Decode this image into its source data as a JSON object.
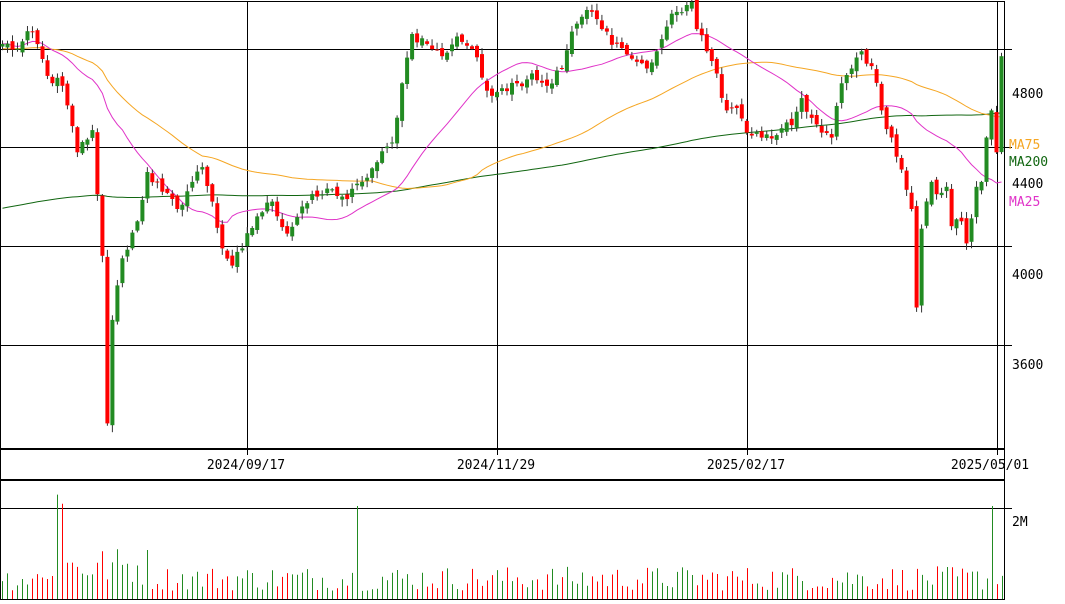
{
  "chart_data": {
    "type": "candlestick",
    "title": "",
    "price_axis": {
      "ylim": [
        3180,
        4990
      ],
      "ticks": [
        {
          "value": 3600,
          "label": "3600"
        },
        {
          "value": 4000,
          "label": "4000"
        },
        {
          "value": 4400,
          "label": "4400"
        },
        {
          "value": 4800,
          "label": "4800"
        }
      ],
      "grid": true
    },
    "date_axis": {
      "labels": [
        {
          "index": 49,
          "label": "2024/09/17"
        },
        {
          "index": 99,
          "label": "2024/11/29"
        },
        {
          "index": 149,
          "label": "2025/02/17"
        },
        {
          "index": 199,
          "label": "2025/05/01"
        }
      ],
      "grid": true
    },
    "volume_axis": {
      "ylim": [
        0,
        2600000
      ],
      "ticks": [
        {
          "value": 2000000,
          "label": "2M"
        }
      ]
    },
    "colors": {
      "up": "#228b22",
      "down": "#ff0000",
      "ma25": "#e033c8",
      "ma75": "#f5a623",
      "ma200": "#116611",
      "grid": "#000000"
    },
    "moving_averages": [
      {
        "name": "MA75",
        "color": "#f5a623",
        "last": 4565
      },
      {
        "name": "MA200",
        "color": "#116611",
        "last": 4490
      },
      {
        "name": "MA25",
        "color": "#e033c8",
        "last": 4320
      }
    ],
    "anchors": [
      [
        0,
        4820
      ],
      [
        3,
        4800
      ],
      [
        6,
        4870
      ],
      [
        9,
        4690
      ],
      [
        12,
        4650
      ],
      [
        15,
        4380
      ],
      [
        18,
        4470
      ],
      [
        19,
        4210
      ],
      [
        20,
        3960
      ],
      [
        21,
        3280
      ],
      [
        22,
        3700
      ],
      [
        24,
        3950
      ],
      [
        27,
        4100
      ],
      [
        29,
        4300
      ],
      [
        32,
        4220
      ],
      [
        35,
        4150
      ],
      [
        38,
        4260
      ],
      [
        40,
        4320
      ],
      [
        42,
        4180
      ],
      [
        44,
        3990
      ],
      [
        46,
        3920
      ],
      [
        48,
        3990
      ],
      [
        51,
        4120
      ],
      [
        54,
        4180
      ],
      [
        57,
        4050
      ],
      [
        60,
        4160
      ],
      [
        63,
        4200
      ],
      [
        66,
        4230
      ],
      [
        69,
        4190
      ],
      [
        72,
        4260
      ],
      [
        75,
        4340
      ],
      [
        78,
        4420
      ],
      [
        80,
        4660
      ],
      [
        82,
        4860
      ],
      [
        85,
        4820
      ],
      [
        88,
        4770
      ],
      [
        91,
        4850
      ],
      [
        94,
        4800
      ],
      [
        97,
        4630
      ],
      [
        100,
        4640
      ],
      [
        103,
        4660
      ],
      [
        106,
        4700
      ],
      [
        109,
        4650
      ],
      [
        112,
        4720
      ],
      [
        114,
        4870
      ],
      [
        116,
        4930
      ],
      [
        118,
        4950
      ],
      [
        120,
        4880
      ],
      [
        123,
        4820
      ],
      [
        126,
        4760
      ],
      [
        129,
        4720
      ],
      [
        131,
        4790
      ],
      [
        133,
        4890
      ],
      [
        135,
        4950
      ],
      [
        138,
        4990
      ],
      [
        139,
        4880
      ],
      [
        141,
        4790
      ],
      [
        143,
        4700
      ],
      [
        145,
        4550
      ],
      [
        147,
        4560
      ],
      [
        149,
        4460
      ],
      [
        152,
        4440
      ],
      [
        155,
        4450
      ],
      [
        158,
        4490
      ],
      [
        160,
        4600
      ],
      [
        162,
        4520
      ],
      [
        164,
        4460
      ],
      [
        166,
        4440
      ],
      [
        168,
        4660
      ],
      [
        170,
        4720
      ],
      [
        172,
        4790
      ],
      [
        174,
        4730
      ],
      [
        176,
        4550
      ],
      [
        178,
        4440
      ],
      [
        180,
        4310
      ],
      [
        182,
        4150
      ],
      [
        183,
        3750
      ],
      [
        184,
        4070
      ],
      [
        186,
        4260
      ],
      [
        187,
        4210
      ],
      [
        189,
        4240
      ],
      [
        190,
        4080
      ],
      [
        192,
        4100
      ],
      [
        193,
        4010
      ],
      [
        195,
        4240
      ],
      [
        196,
        4260
      ],
      [
        197,
        4440
      ],
      [
        198,
        4550
      ],
      [
        199,
        4380
      ],
      [
        200,
        4770
      ]
    ],
    "ma_params": {
      "ma25_len": 25,
      "ma75_len": 75,
      "ma200_len": 200,
      "ma200_base": 4150,
      "ma75_seed": 4800
    },
    "volume_profile": {
      "base": 450000,
      "spikes": [
        {
          "index": 11,
          "value": 2300000
        },
        {
          "index": 12,
          "value": 2100000
        },
        {
          "index": 71,
          "value": 2050000
        },
        {
          "index": 198,
          "value": 2050000
        }
      ]
    }
  },
  "labels": {
    "ma75": "MA75",
    "ma200": "MA200",
    "ma25": "MA25",
    "y_4800": "4800",
    "y_4400": "4400",
    "y_4000": "4000",
    "y_3600": "3600",
    "x_0917": "2024/09/17",
    "x_1129": "2024/11/29",
    "x_0217": "2025/02/17",
    "x_0501": "2025/05/01",
    "vol_2m": "2M"
  }
}
